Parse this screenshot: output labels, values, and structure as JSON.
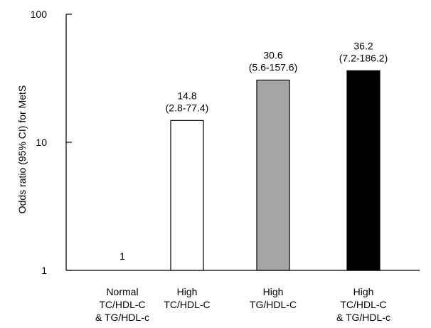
{
  "chart_data": {
    "type": "bar",
    "ylabel": "Odds ratio (95% CI) for MetS",
    "yscale": "log",
    "ylim": [
      1,
      100
    ],
    "yticks": [
      {
        "value": 1,
        "label": "1"
      },
      {
        "value": 10,
        "label": "10"
      },
      {
        "value": 100,
        "label": "100"
      }
    ],
    "grid": false,
    "categories": [
      {
        "lines": [
          "Normal",
          "TC/HDL-C",
          "& TG/HDL-c"
        ]
      },
      {
        "lines": [
          "High",
          "TC/HDL-C"
        ]
      },
      {
        "lines": [
          "High",
          "TG/HDL-C"
        ]
      },
      {
        "lines": [
          "High",
          "TC/HDL-C",
          "& TG/HDL-c"
        ]
      }
    ],
    "values": [
      1,
      14.8,
      30.6,
      36.2
    ],
    "value_labels": [
      "1",
      "14.8",
      "30.6",
      "36.2"
    ],
    "ci_labels": [
      "",
      "(2.8-77.4)",
      "(5.6-157.6)",
      "(7.2-186.2)"
    ],
    "bar_colors": [
      "#ffffff",
      "#ffffff",
      "#a6a6a6",
      "#000000"
    ],
    "bar_border_color": "#000000"
  }
}
